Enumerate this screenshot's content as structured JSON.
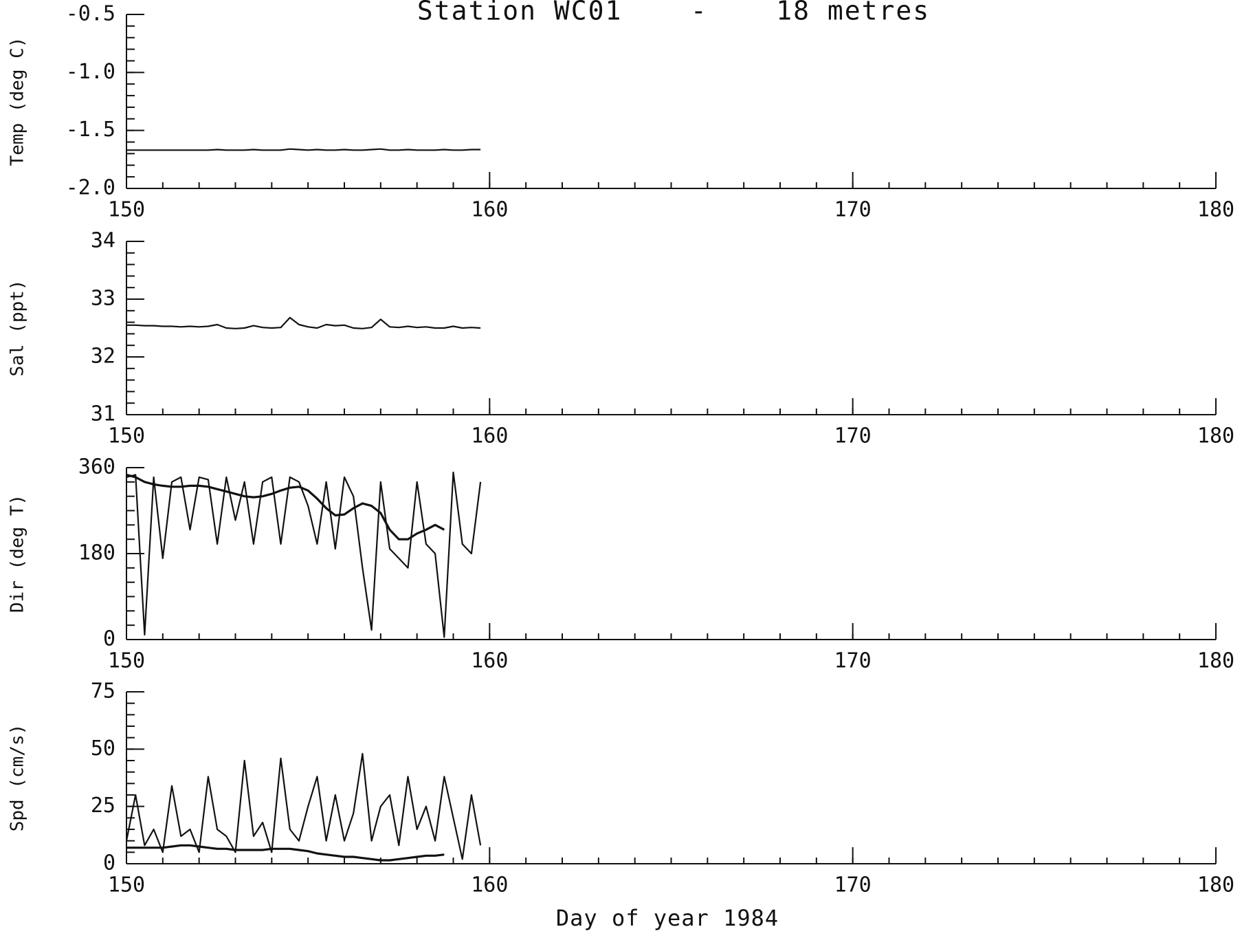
{
  "chart_data": [
    {
      "type": "line",
      "title": "Station WC01    -    18 metres",
      "ylabel": "Temp (deg C)",
      "x": [
        150,
        150.25,
        150.5,
        150.75,
        151,
        151.25,
        151.5,
        151.75,
        152,
        152.25,
        152.5,
        152.75,
        153,
        153.25,
        153.5,
        153.75,
        154,
        154.25,
        154.5,
        154.75,
        155,
        155.25,
        155.5,
        155.75,
        156,
        156.25,
        156.5,
        156.75,
        157,
        157.25,
        157.5,
        157.75,
        158,
        158.25,
        158.5,
        158.75,
        159,
        159.25,
        159.5,
        159.75
      ],
      "series": [
        {
          "color": "#111111",
          "values": [
            -1.67,
            -1.67,
            -1.67,
            -1.67,
            -1.67,
            -1.67,
            -1.67,
            -1.67,
            -1.67,
            -1.67,
            -1.665,
            -1.67,
            -1.67,
            -1.67,
            -1.665,
            -1.67,
            -1.67,
            -1.67,
            -1.66,
            -1.665,
            -1.67,
            -1.665,
            -1.67,
            -1.67,
            -1.665,
            -1.67,
            -1.67,
            -1.665,
            -1.66,
            -1.67,
            -1.67,
            -1.665,
            -1.67,
            -1.67,
            -1.67,
            -1.665,
            -1.67,
            -1.67,
            -1.665,
            -1.665
          ]
        }
      ],
      "xlim": [
        150,
        180
      ],
      "xticks": [
        150,
        160,
        170,
        180
      ],
      "x_minor_step": 1,
      "ylim": [
        -2,
        -0.5
      ],
      "yticks": [
        {
          "value": -2,
          "label": "-2.0"
        },
        -1.5,
        {
          "value": -1,
          "label": "-1.0"
        },
        -0.5
      ],
      "y_minor_step": 0.1
    },
    {
      "type": "line",
      "ylabel": "Sal (ppt)",
      "x": [
        150,
        150.25,
        150.5,
        150.75,
        151,
        151.25,
        151.5,
        151.75,
        152,
        152.25,
        152.5,
        152.75,
        153,
        153.25,
        153.5,
        153.75,
        154,
        154.25,
        154.5,
        154.75,
        155,
        155.25,
        155.5,
        155.75,
        156,
        156.25,
        156.5,
        156.75,
        157,
        157.25,
        157.5,
        157.75,
        158,
        158.25,
        158.5,
        158.75,
        159,
        159.25,
        159.5,
        159.75
      ],
      "series": [
        {
          "color": "#111111",
          "values": [
            32.55,
            32.55,
            32.54,
            32.54,
            32.53,
            32.53,
            32.52,
            32.53,
            32.52,
            32.53,
            32.56,
            32.5,
            32.49,
            32.5,
            32.54,
            32.51,
            32.5,
            32.51,
            32.68,
            32.56,
            32.52,
            32.5,
            32.56,
            32.54,
            32.55,
            32.5,
            32.49,
            32.51,
            32.65,
            32.52,
            32.51,
            32.53,
            32.51,
            32.52,
            32.5,
            32.5,
            32.53,
            32.5,
            32.51,
            32.5
          ]
        }
      ],
      "xlim": [
        150,
        180
      ],
      "xticks": [
        150,
        160,
        170,
        180
      ],
      "x_minor_step": 1,
      "ylim": [
        31,
        34
      ],
      "yticks": [
        31,
        32,
        33,
        34
      ],
      "y_minor_step": 0.2
    },
    {
      "type": "line",
      "ylabel": "Dir (deg T)",
      "x": [
        150,
        150.25,
        150.5,
        150.75,
        151,
        151.25,
        151.5,
        151.75,
        152,
        152.25,
        152.5,
        152.75,
        153,
        153.25,
        153.5,
        153.75,
        154,
        154.25,
        154.5,
        154.75,
        155,
        155.25,
        155.5,
        155.75,
        156,
        156.25,
        156.5,
        156.75,
        157,
        157.25,
        157.5,
        157.75,
        158,
        158.25,
        158.5,
        158.75,
        159,
        159.25,
        159.5,
        159.75
      ],
      "series": [
        {
          "color": "#111111",
          "values": [
            340,
            345,
            10,
            340,
            170,
            330,
            340,
            230,
            340,
            335,
            200,
            340,
            250,
            330,
            200,
            330,
            340,
            200,
            340,
            330,
            280,
            200,
            330,
            190,
            340,
            300,
            150,
            20,
            330,
            190,
            170,
            150,
            330,
            200,
            180,
            5,
            350,
            200,
            180,
            330
          ]
        },
        {
          "color": "#111111",
          "values": [
            345,
            340,
            330,
            325,
            322,
            320,
            320,
            322,
            322,
            320,
            315,
            310,
            305,
            300,
            298,
            300,
            305,
            312,
            318,
            320,
            312,
            295,
            275,
            260,
            262,
            275,
            285,
            280,
            265,
            230,
            210,
            210,
            222,
            230,
            240,
            230,
            null,
            null,
            null,
            null
          ]
        }
      ],
      "xlim": [
        150,
        180
      ],
      "xticks": [
        150,
        160,
        170,
        180
      ],
      "x_minor_step": 1,
      "ylim": [
        0,
        360
      ],
      "yticks": [
        0,
        180,
        360
      ],
      "y_minor_step": 30
    },
    {
      "type": "line",
      "ylabel": "Spd (cm/s)",
      "xlabel": "Day of year 1984",
      "x": [
        150,
        150.25,
        150.5,
        150.75,
        151,
        151.25,
        151.5,
        151.75,
        152,
        152.25,
        152.5,
        152.75,
        153,
        153.25,
        153.5,
        153.75,
        154,
        154.25,
        154.5,
        154.75,
        155,
        155.25,
        155.5,
        155.75,
        156,
        156.25,
        156.5,
        156.75,
        157,
        157.25,
        157.5,
        157.75,
        158,
        158.25,
        158.5,
        158.75,
        159,
        159.25,
        159.5,
        159.75
      ],
      "series": [
        {
          "color": "#111111",
          "values": [
            10,
            30,
            8,
            15,
            5,
            34,
            12,
            15,
            5,
            38,
            15,
            12,
            5,
            45,
            12,
            18,
            5,
            46,
            15,
            10,
            25,
            38,
            10,
            30,
            10,
            22,
            48,
            10,
            25,
            30,
            8,
            38,
            15,
            25,
            10,
            38,
            20,
            2,
            30,
            8
          ]
        },
        {
          "color": "#111111",
          "values": [
            7,
            7,
            7,
            7,
            7,
            7.5,
            8,
            8,
            7.5,
            7,
            6.5,
            6.5,
            6,
            6,
            6,
            6,
            6.5,
            6.5,
            6.5,
            6,
            5.5,
            4.5,
            4,
            3.5,
            3,
            3,
            2.5,
            2,
            1.5,
            1.5,
            2,
            2.5,
            3,
            3.5,
            3.5,
            4,
            null,
            null,
            null,
            null
          ]
        }
      ],
      "xlim": [
        150,
        180
      ],
      "xticks": [
        150,
        160,
        170,
        180
      ],
      "x_minor_step": 1,
      "ylim": [
        0,
        75
      ],
      "yticks": [
        0,
        25,
        50,
        75
      ],
      "y_minor_step": 5
    }
  ]
}
